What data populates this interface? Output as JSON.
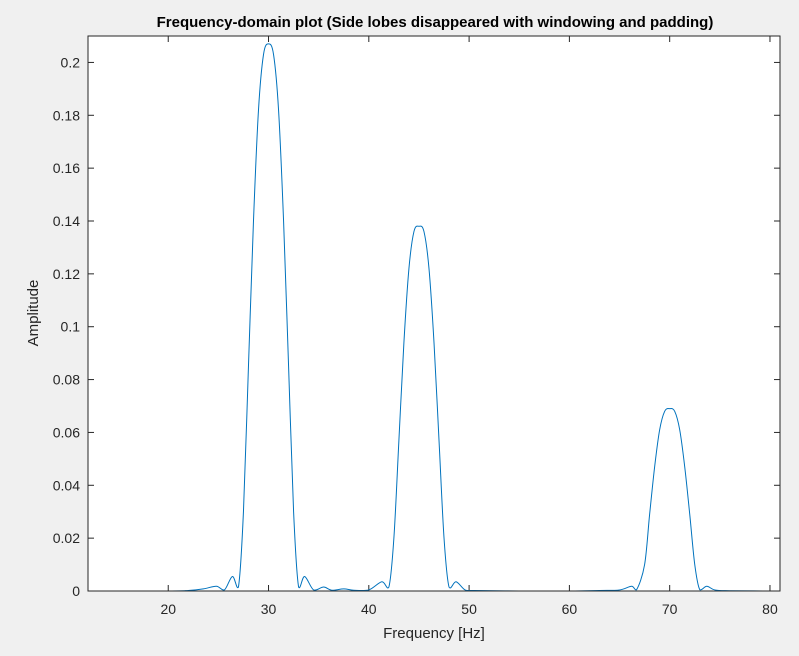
{
  "chart_data": {
    "type": "line",
    "title": "Frequency-domain plot (Side lobes disappeared with windowing and padding)",
    "xlabel": "Frequency [Hz]",
    "ylabel": "Amplitude",
    "xlim": [
      12,
      81
    ],
    "ylim": [
      0,
      0.21
    ],
    "xticks": [
      20,
      30,
      40,
      50,
      60,
      70,
      80
    ],
    "yticks": [
      0,
      0.02,
      0.04,
      0.06,
      0.08,
      0.1,
      0.12,
      0.14,
      0.16,
      0.18,
      0.2
    ],
    "ytick_labels": [
      "0",
      "0.02",
      "0.04",
      "0.06",
      "0.08",
      "0.1",
      "0.12",
      "0.14",
      "0.16",
      "0.18",
      "0.2"
    ],
    "grid": false,
    "series": [
      {
        "color": "#0072bd",
        "x": [
          12,
          20,
          22,
          23.5,
          24.8,
          25.6,
          26.4,
          27.0,
          27.5,
          28.0,
          28.5,
          29.0,
          29.5,
          30.0,
          30.5,
          31.0,
          31.5,
          32.0,
          32.5,
          33.0,
          33.6,
          34.5,
          35.5,
          36.3,
          37.5,
          38.5,
          40.0,
          41.3,
          42.0,
          42.5,
          43.0,
          43.5,
          44.0,
          44.5,
          45.0,
          45.5,
          46.0,
          46.5,
          47.0,
          47.5,
          48.0,
          48.7,
          49.6,
          50.5,
          55,
          60,
          63,
          65,
          66.2,
          66.7,
          67.5,
          68.0,
          68.5,
          69.0,
          69.5,
          70.0,
          70.5,
          71.0,
          71.5,
          72.0,
          72.5,
          73.0,
          73.7,
          74.5,
          76,
          81
        ],
        "y": [
          0,
          0,
          0.0002,
          0.0008,
          0.0018,
          0.0004,
          0.0055,
          0.0015,
          0.03,
          0.085,
          0.14,
          0.182,
          0.203,
          0.207,
          0.203,
          0.182,
          0.14,
          0.085,
          0.03,
          0.0015,
          0.0055,
          0.0004,
          0.0015,
          0.0003,
          0.0008,
          0.0003,
          0.0004,
          0.0035,
          0.0015,
          0.02,
          0.057,
          0.094,
          0.122,
          0.136,
          0.138,
          0.136,
          0.122,
          0.094,
          0.057,
          0.02,
          0.0015,
          0.0035,
          0.0004,
          0.0002,
          0,
          0,
          0.0002,
          0.0004,
          0.0018,
          0.0005,
          0.01,
          0.029,
          0.047,
          0.061,
          0.068,
          0.069,
          0.068,
          0.061,
          0.047,
          0.029,
          0.01,
          0.0005,
          0.0018,
          0.0004,
          0.0001,
          0
        ]
      }
    ]
  }
}
